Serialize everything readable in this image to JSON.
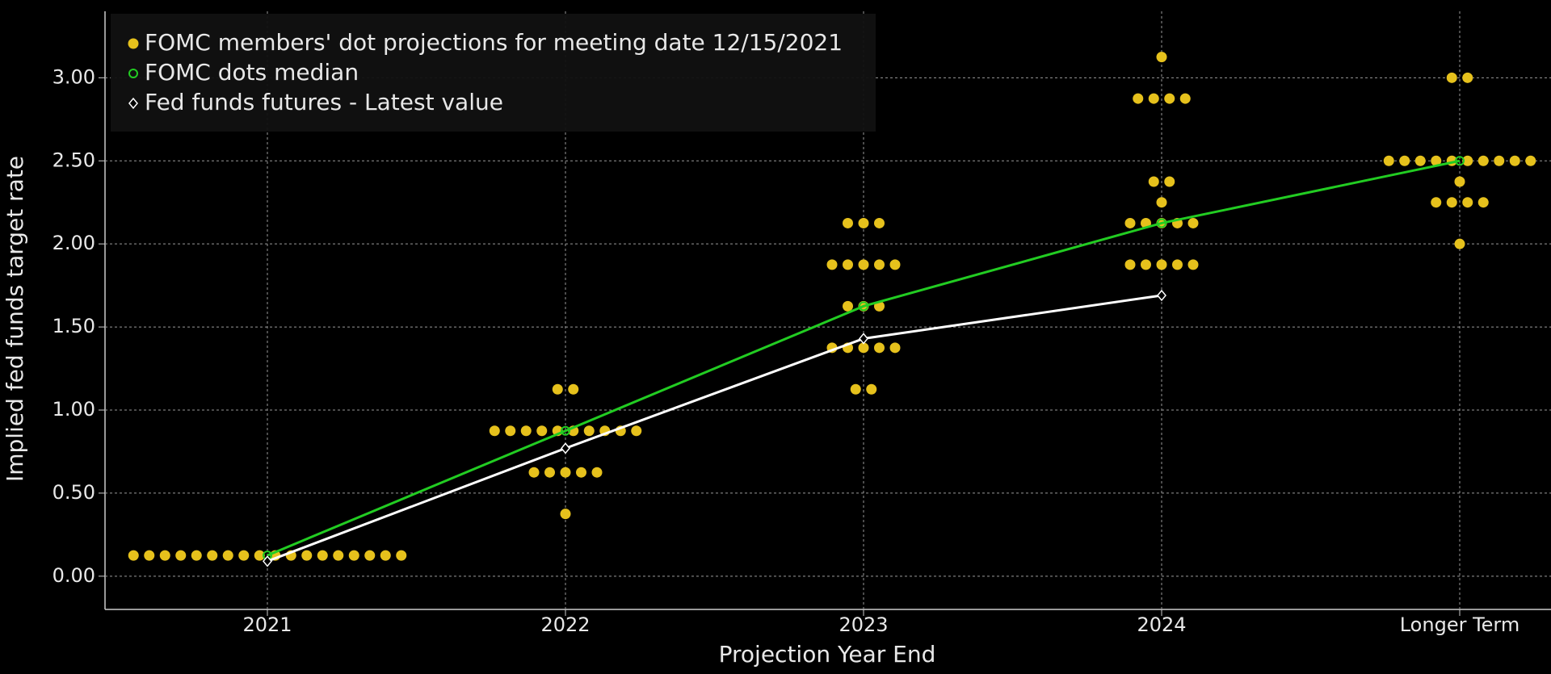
{
  "chart_data": {
    "type": "dot_plot",
    "ylabel": "Implied fed funds target rate",
    "xlabel": "Projection Year End",
    "categories": [
      "2021",
      "2022",
      "2023",
      "2024",
      "Longer Term"
    ],
    "ylim": [
      -0.2,
      3.4
    ],
    "yticks": [
      {
        "value": 0,
        "label": "0.00"
      },
      {
        "value": 0.5,
        "label": "0.50"
      },
      {
        "value": 1,
        "label": "1.00"
      },
      {
        "value": 1.5,
        "label": "1.50"
      },
      {
        "value": 2,
        "label": "2.00"
      },
      {
        "value": 2.5,
        "label": "2.50"
      },
      {
        "value": 3,
        "label": "3.00"
      }
    ],
    "grid": true,
    "legend": "top-left",
    "series": [
      {
        "name": "FOMC members' dot projections for meeting date 12/15/2021",
        "color": "#e6c11c",
        "marker": "dot",
        "values": [
          [
            0.125,
            0.125,
            0.125,
            0.125,
            0.125,
            0.125,
            0.125,
            0.125,
            0.125,
            0.125,
            0.125,
            0.125,
            0.125,
            0.125,
            0.125,
            0.125,
            0.125,
            0.125
          ],
          [
            0.375,
            0.625,
            0.625,
            0.625,
            0.625,
            0.625,
            0.875,
            0.875,
            0.875,
            0.875,
            0.875,
            0.875,
            0.875,
            0.875,
            0.875,
            0.875,
            1.125,
            1.125
          ],
          [
            1.125,
            1.125,
            1.375,
            1.375,
            1.375,
            1.375,
            1.375,
            1.625,
            1.625,
            1.625,
            1.875,
            1.875,
            1.875,
            1.875,
            1.875,
            2.125,
            2.125,
            2.125
          ],
          [
            1.875,
            1.875,
            1.875,
            1.875,
            1.875,
            2.125,
            2.125,
            2.125,
            2.125,
            2.125,
            2.25,
            2.375,
            2.375,
            2.875,
            2.875,
            2.875,
            2.875,
            3.125
          ],
          [
            2,
            2.25,
            2.25,
            2.25,
            2.25,
            2.375,
            2.5,
            2.5,
            2.5,
            2.5,
            2.5,
            2.5,
            2.5,
            2.5,
            2.5,
            2.5,
            3,
            3
          ]
        ]
      },
      {
        "name": "FOMC dots median",
        "color": "#22cc22",
        "marker": "circle",
        "values": [
          0.125,
          0.875,
          1.625,
          2.125,
          2.5
        ]
      },
      {
        "name": "Fed funds futures - Latest value",
        "color": "#ffffff",
        "marker": "diamond",
        "values": [
          0.09,
          0.77,
          1.43,
          1.69,
          null
        ]
      }
    ]
  }
}
